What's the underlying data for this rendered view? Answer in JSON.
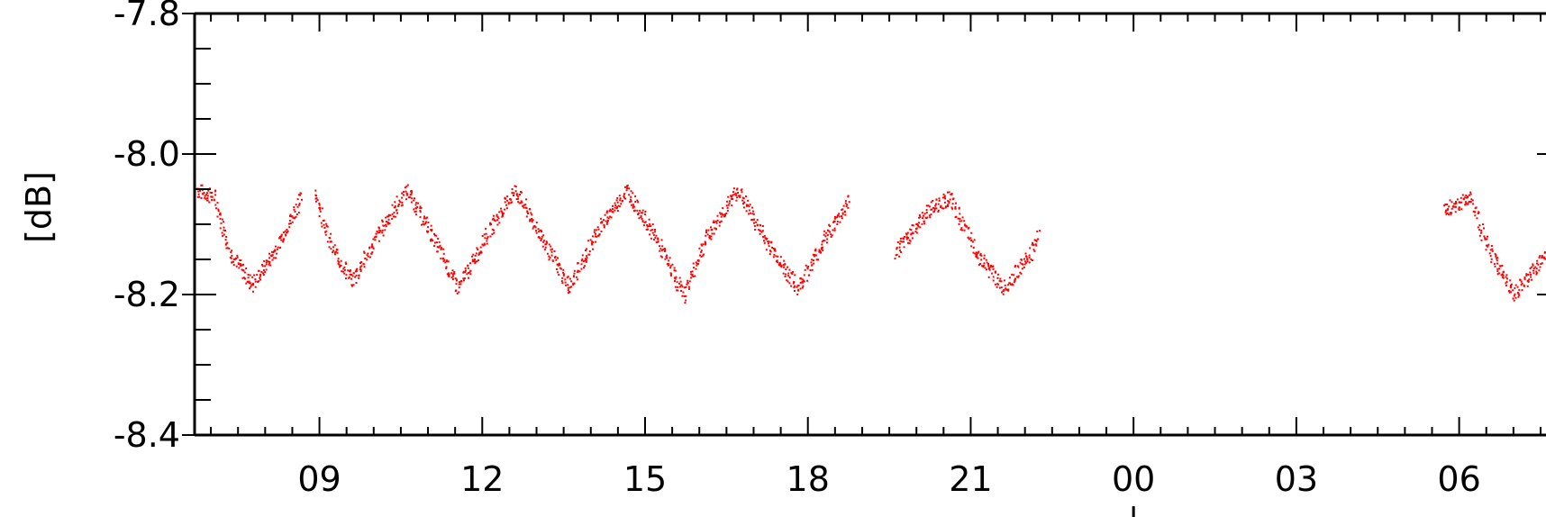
{
  "chart_data": {
    "type": "scatter",
    "title": "",
    "xlabel": "",
    "ylabel": "[dB]",
    "ylim": [
      -8.4,
      -7.8
    ],
    "y_ticks": [
      -7.8,
      -8.0,
      -8.2,
      -8.4
    ],
    "y_tick_labels": [
      "-7.8",
      "-8.0",
      "-8.2",
      "-8.4"
    ],
    "x_ticks_hours": [
      9,
      12,
      15,
      18,
      21,
      24,
      27,
      30
    ],
    "x_tick_labels": [
      "09",
      "12",
      "15",
      "18",
      "21",
      "00",
      "03",
      "06"
    ],
    "xlim_hours": [
      6.7,
      31.6
    ],
    "grid": false,
    "legend": false,
    "series": [
      {
        "color": "#ff0000",
        "segments": [
          [
            [
              6.7,
              -8.05
            ],
            [
              7.05,
              -8.06
            ],
            [
              7.35,
              -8.14
            ],
            [
              7.75,
              -8.185
            ],
            [
              8.15,
              -8.14
            ],
            [
              8.6,
              -8.07
            ],
            [
              8.65,
              -8.06
            ]
          ],
          [
            [
              8.9,
              -8.05
            ],
            [
              9.2,
              -8.13
            ],
            [
              9.6,
              -8.18
            ],
            [
              10.1,
              -8.11
            ],
            [
              10.6,
              -8.05
            ],
            [
              11.1,
              -8.12
            ],
            [
              11.55,
              -8.19
            ],
            [
              12.1,
              -8.11
            ],
            [
              12.6,
              -8.05
            ],
            [
              13.1,
              -8.12
            ],
            [
              13.6,
              -8.19
            ],
            [
              14.1,
              -8.11
            ],
            [
              14.65,
              -8.05
            ],
            [
              15.2,
              -8.12
            ],
            [
              15.7,
              -8.2
            ],
            [
              16.1,
              -8.12
            ],
            [
              16.7,
              -8.05
            ],
            [
              17.2,
              -8.12
            ],
            [
              17.8,
              -8.19
            ],
            [
              18.3,
              -8.12
            ],
            [
              18.75,
              -8.065
            ]
          ],
          [
            [
              19.6,
              -8.14
            ],
            [
              20.2,
              -8.08
            ],
            [
              20.6,
              -8.06
            ],
            [
              21.1,
              -8.14
            ],
            [
              21.6,
              -8.19
            ],
            [
              22.1,
              -8.14
            ],
            [
              22.25,
              -8.11
            ]
          ],
          [
            [
              29.7,
              -8.08
            ],
            [
              30.2,
              -8.06
            ],
            [
              30.5,
              -8.13
            ],
            [
              31.0,
              -8.2
            ],
            [
              31.3,
              -8.17
            ],
            [
              31.6,
              -8.14
            ]
          ]
        ]
      }
    ]
  }
}
